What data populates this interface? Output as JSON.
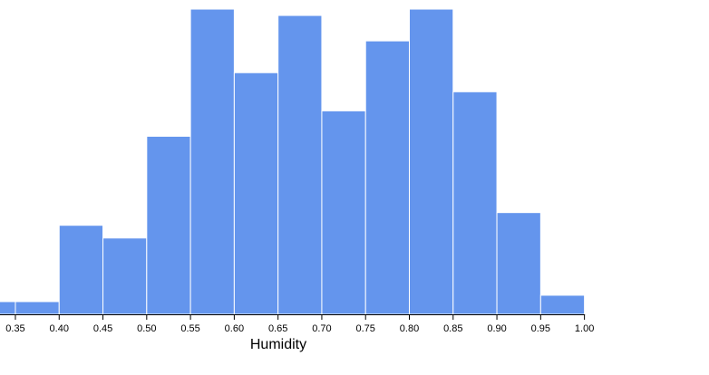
{
  "chart_data": {
    "type": "bar",
    "subtype": "histogram",
    "xlabel": "Humidity",
    "ylabel": "",
    "xlim": [
      0.3,
      1.0
    ],
    "bar_color": "#6495ED",
    "bins": [
      {
        "x0": 0.3,
        "x1": 0.35,
        "count": 1
      },
      {
        "x0": 0.35,
        "x1": 0.4,
        "count": 1
      },
      {
        "x0": 0.4,
        "x1": 0.45,
        "count": 7
      },
      {
        "x0": 0.45,
        "x1": 0.5,
        "count": 6
      },
      {
        "x0": 0.5,
        "x1": 0.55,
        "count": 14
      },
      {
        "x0": 0.55,
        "x1": 0.6,
        "count": 24
      },
      {
        "x0": 0.6,
        "x1": 0.65,
        "count": 19
      },
      {
        "x0": 0.65,
        "x1": 0.7,
        "count": 23.5
      },
      {
        "x0": 0.7,
        "x1": 0.75,
        "count": 16
      },
      {
        "x0": 0.75,
        "x1": 0.8,
        "count": 21.5
      },
      {
        "x0": 0.8,
        "x1": 0.85,
        "count": 24
      },
      {
        "x0": 0.85,
        "x1": 0.9,
        "count": 17.5
      },
      {
        "x0": 0.9,
        "x1": 0.95,
        "count": 8
      },
      {
        "x0": 0.95,
        "x1": 1.0,
        "count": 1.5
      }
    ],
    "x_ticks": [
      "0.35",
      "0.40",
      "0.45",
      "0.50",
      "0.55",
      "0.60",
      "0.65",
      "0.70",
      "0.75",
      "0.80",
      "0.85",
      "0.90",
      "0.95",
      "1.00"
    ],
    "grid": false
  }
}
